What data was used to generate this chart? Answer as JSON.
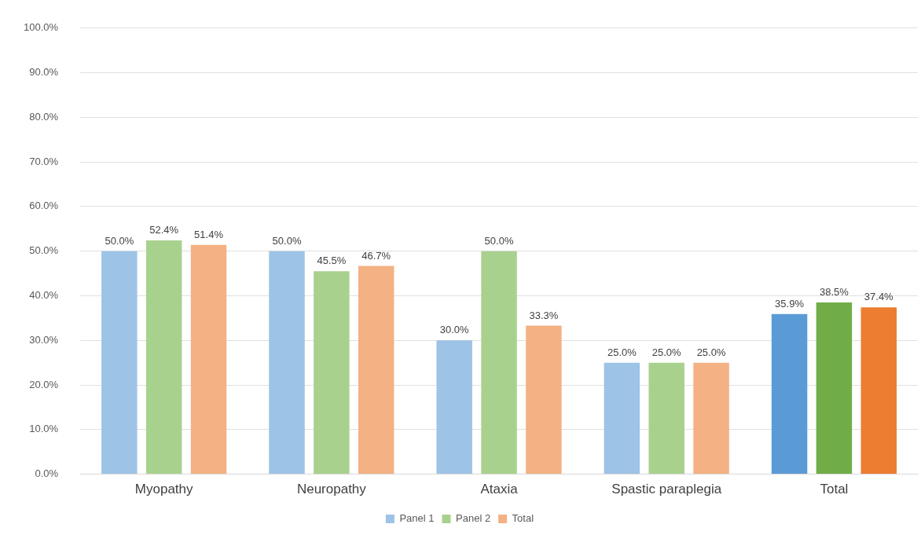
{
  "chart_data": {
    "type": "bar",
    "categories": [
      "Myopathy",
      "Neuropathy",
      "Ataxia",
      "Spastic paraplegia",
      "Total"
    ],
    "series": [
      {
        "name": "Panel 1",
        "color": "#9dc3e6",
        "colors": [
          "#9dc3e6",
          "#9dc3e6",
          "#9dc3e6",
          "#9dc3e6",
          "#5b9bd5"
        ],
        "values": [
          50.0,
          50.0,
          30.0,
          25.0,
          35.9
        ],
        "value_labels": [
          "50.0%",
          "50.0%",
          "30.0%",
          "25.0%",
          "35.9%"
        ]
      },
      {
        "name": "Panel 2",
        "color": "#a9d18e",
        "colors": [
          "#a9d18e",
          "#a9d18e",
          "#a9d18e",
          "#a9d18e",
          "#70ad47"
        ],
        "values": [
          52.4,
          45.5,
          50.0,
          25.0,
          38.5
        ],
        "value_labels": [
          "52.4%",
          "45.5%",
          "50.0%",
          "25.0%",
          "38.5%"
        ]
      },
      {
        "name": "Total",
        "color": "#f4b183",
        "colors": [
          "#f4b183",
          "#f4b183",
          "#f4b183",
          "#f4b183",
          "#ed7d31"
        ],
        "values": [
          51.4,
          46.7,
          33.3,
          25.0,
          37.4
        ],
        "value_labels": [
          "51.4%",
          "46.7%",
          "33.3%",
          "25.0%",
          "37.4%"
        ]
      }
    ],
    "ylim": [
      0,
      100
    ],
    "yticks": [
      {
        "value": 0,
        "label": "0.0%"
      },
      {
        "value": 10,
        "label": "10.0%"
      },
      {
        "value": 20,
        "label": "20.0%"
      },
      {
        "value": 30,
        "label": "30.0%"
      },
      {
        "value": 40,
        "label": "40.0%"
      },
      {
        "value": 50,
        "label": "50.0%"
      },
      {
        "value": 60,
        "label": "60.0%"
      },
      {
        "value": 70,
        "label": "70.0%"
      },
      {
        "value": 80,
        "label": "80.0%"
      },
      {
        "value": 90,
        "label": "90.0%"
      },
      {
        "value": 100,
        "label": "100.0%"
      }
    ],
    "grid": "y",
    "legend": "bottom"
  }
}
